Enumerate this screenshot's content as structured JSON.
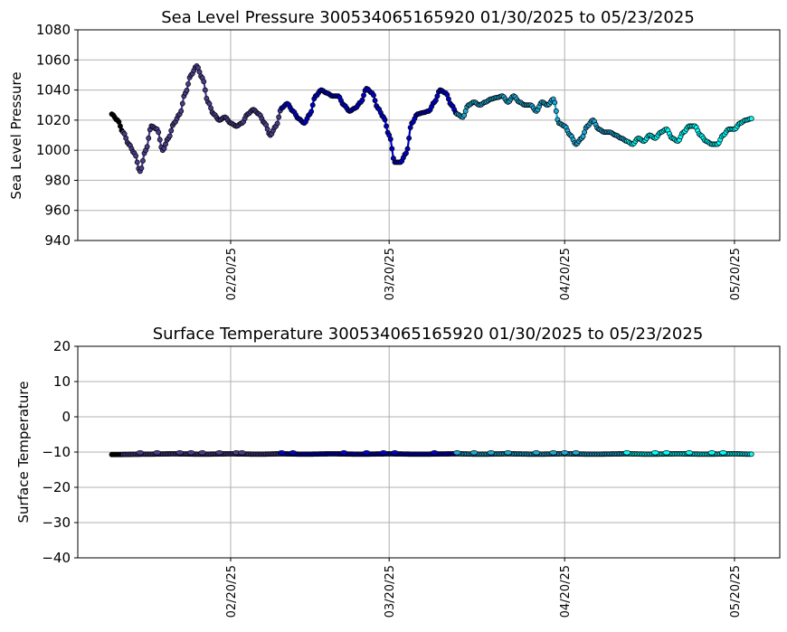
{
  "chart_data": [
    {
      "type": "line",
      "title": "Sea Level Pressure 300534065165920  01/30/2025 to 05/23/2025",
      "xlabel": "",
      "ylabel": "Sea Level Pressure",
      "x_range": [
        "2025-01-24",
        "2025-05-28"
      ],
      "ylim": [
        940,
        1080
      ],
      "yticks": [
        940,
        960,
        980,
        1000,
        1020,
        1040,
        1060,
        1080
      ],
      "xticks": [
        {
          "date": "2025-02-20",
          "label": "02/20/25"
        },
        {
          "date": "2025-03-20",
          "label": "03/20/25"
        },
        {
          "date": "2025-04-20",
          "label": "04/20/25"
        },
        {
          "date": "2025-05-20",
          "label": "05/20/25"
        }
      ],
      "grid": true,
      "color_segments": [
        {
          "from": "2025-01-30",
          "color": "#000000"
        },
        {
          "from": "2025-02-01",
          "color": "#483d8b"
        },
        {
          "from": "2025-03-01",
          "color": "#0000cd"
        },
        {
          "from": "2025-04-01",
          "color": "#1ca9d6"
        },
        {
          "from": "2025-05-01",
          "color": "#00ffff"
        }
      ],
      "series": [
        {
          "points": [
            [
              "2025-01-30",
              1024
            ],
            [
              "2025-01-31",
              1020
            ],
            [
              "2025-02-01",
              1012
            ],
            [
              "2025-02-02",
              1004
            ],
            [
              "2025-02-03",
              998
            ],
            [
              "2025-02-04",
              986
            ],
            [
              "2025-02-05",
              1000
            ],
            [
              "2025-02-06",
              1016
            ],
            [
              "2025-02-07",
              1014
            ],
            [
              "2025-02-08",
              1000
            ],
            [
              "2025-02-09",
              1008
            ],
            [
              "2025-02-10",
              1018
            ],
            [
              "2025-02-11",
              1024
            ],
            [
              "2025-02-12",
              1038
            ],
            [
              "2025-02-13",
              1050
            ],
            [
              "2025-02-14",
              1056
            ],
            [
              "2025-02-15",
              1048
            ],
            [
              "2025-02-16",
              1032
            ],
            [
              "2025-02-17",
              1024
            ],
            [
              "2025-02-18",
              1020
            ],
            [
              "2025-02-19",
              1022
            ],
            [
              "2025-02-20",
              1018
            ],
            [
              "2025-02-21",
              1016
            ],
            [
              "2025-02-22",
              1018
            ],
            [
              "2025-02-23",
              1024
            ],
            [
              "2025-02-24",
              1027
            ],
            [
              "2025-02-25",
              1024
            ],
            [
              "2025-02-26",
              1018
            ],
            [
              "2025-02-27",
              1010
            ],
            [
              "2025-02-28",
              1016
            ],
            [
              "2025-03-01",
              1028
            ],
            [
              "2025-03-02",
              1031
            ],
            [
              "2025-03-03",
              1026
            ],
            [
              "2025-03-04",
              1021
            ],
            [
              "2025-03-05",
              1018
            ],
            [
              "2025-03-06",
              1024
            ],
            [
              "2025-03-07",
              1036
            ],
            [
              "2025-03-08",
              1040
            ],
            [
              "2025-03-09",
              1038
            ],
            [
              "2025-03-10",
              1036
            ],
            [
              "2025-03-11",
              1036
            ],
            [
              "2025-03-12",
              1030
            ],
            [
              "2025-03-13",
              1026
            ],
            [
              "2025-03-14",
              1028
            ],
            [
              "2025-03-15",
              1032
            ],
            [
              "2025-03-16",
              1041
            ],
            [
              "2025-03-17",
              1038
            ],
            [
              "2025-03-18",
              1028
            ],
            [
              "2025-03-19",
              1022
            ],
            [
              "2025-03-20",
              1010
            ],
            [
              "2025-03-21",
              992
            ],
            [
              "2025-03-22",
              992
            ],
            [
              "2025-03-23",
              998
            ],
            [
              "2025-03-24",
              1018
            ],
            [
              "2025-03-25",
              1024
            ],
            [
              "2025-03-26",
              1025
            ],
            [
              "2025-03-27",
              1026
            ],
            [
              "2025-03-28",
              1032
            ],
            [
              "2025-03-29",
              1040
            ],
            [
              "2025-03-30",
              1038
            ],
            [
              "2025-03-31",
              1030
            ],
            [
              "2025-04-01",
              1024
            ],
            [
              "2025-04-02",
              1022
            ],
            [
              "2025-04-03",
              1030
            ],
            [
              "2025-04-04",
              1032
            ],
            [
              "2025-04-05",
              1030
            ],
            [
              "2025-04-06",
              1032
            ],
            [
              "2025-04-07",
              1034
            ],
            [
              "2025-04-08",
              1035
            ],
            [
              "2025-04-09",
              1036
            ],
            [
              "2025-04-10",
              1032
            ],
            [
              "2025-04-11",
              1036
            ],
            [
              "2025-04-12",
              1032
            ],
            [
              "2025-04-13",
              1030
            ],
            [
              "2025-04-14",
              1030
            ],
            [
              "2025-04-15",
              1026
            ],
            [
              "2025-04-16",
              1032
            ],
            [
              "2025-04-17",
              1030
            ],
            [
              "2025-04-18",
              1034
            ],
            [
              "2025-04-19",
              1018
            ],
            [
              "2025-04-20",
              1016
            ],
            [
              "2025-04-21",
              1010
            ],
            [
              "2025-04-22",
              1004
            ],
            [
              "2025-04-23",
              1008
            ],
            [
              "2025-04-24",
              1016
            ],
            [
              "2025-04-25",
              1020
            ],
            [
              "2025-04-26",
              1014
            ],
            [
              "2025-04-27",
              1012
            ],
            [
              "2025-04-28",
              1012
            ],
            [
              "2025-04-29",
              1010
            ],
            [
              "2025-04-30",
              1008
            ],
            [
              "2025-05-01",
              1006
            ],
            [
              "2025-05-02",
              1004
            ],
            [
              "2025-05-03",
              1008
            ],
            [
              "2025-05-04",
              1006
            ],
            [
              "2025-05-05",
              1010
            ],
            [
              "2025-05-06",
              1008
            ],
            [
              "2025-05-07",
              1012
            ],
            [
              "2025-05-08",
              1014
            ],
            [
              "2025-05-09",
              1008
            ],
            [
              "2025-05-10",
              1006
            ],
            [
              "2025-05-11",
              1012
            ],
            [
              "2025-05-12",
              1016
            ],
            [
              "2025-05-13",
              1016
            ],
            [
              "2025-05-14",
              1010
            ],
            [
              "2025-05-15",
              1006
            ],
            [
              "2025-05-16",
              1004
            ],
            [
              "2025-05-17",
              1004
            ],
            [
              "2025-05-18",
              1010
            ],
            [
              "2025-05-19",
              1014
            ],
            [
              "2025-05-20",
              1014
            ],
            [
              "2025-05-21",
              1018
            ],
            [
              "2025-05-22",
              1020
            ],
            [
              "2025-05-23",
              1021
            ]
          ]
        }
      ]
    },
    {
      "type": "line",
      "title": "Surface Temperature 300534065165920  01/30/2025 to 05/23/2025",
      "xlabel": "",
      "ylabel": "Surface Temperature",
      "x_range": [
        "2025-01-24",
        "2025-05-28"
      ],
      "ylim": [
        -40,
        20
      ],
      "yticks": [
        -40,
        -30,
        -20,
        -10,
        0,
        10,
        20
      ],
      "ytick_labels": [
        "−40",
        "−30",
        "−20",
        "−10",
        "0",
        "10",
        "20"
      ],
      "xticks": [
        {
          "date": "2025-02-20",
          "label": "02/20/25"
        },
        {
          "date": "2025-03-20",
          "label": "03/20/25"
        },
        {
          "date": "2025-04-20",
          "label": "04/20/25"
        },
        {
          "date": "2025-05-20",
          "label": "05/20/25"
        }
      ],
      "grid": true,
      "color_segments": [
        {
          "from": "2025-01-30",
          "color": "#000000"
        },
        {
          "from": "2025-02-01",
          "color": "#483d8b"
        },
        {
          "from": "2025-03-01",
          "color": "#0000cd"
        },
        {
          "from": "2025-04-01",
          "color": "#1ca9d6"
        },
        {
          "from": "2025-05-01",
          "color": "#00ffff"
        }
      ],
      "series": [
        {
          "points": [
            [
              "2025-01-30",
              -10.7
            ],
            [
              "2025-02-05",
              -10.6
            ],
            [
              "2025-02-10",
              -10.5
            ],
            [
              "2025-02-15",
              -10.6
            ],
            [
              "2025-02-20",
              -10.5
            ],
            [
              "2025-02-25",
              -10.6
            ],
            [
              "2025-03-01",
              -10.5
            ],
            [
              "2025-03-05",
              -10.6
            ],
            [
              "2025-03-10",
              -10.5
            ],
            [
              "2025-03-15",
              -10.6
            ],
            [
              "2025-03-20",
              -10.5
            ],
            [
              "2025-03-25",
              -10.6
            ],
            [
              "2025-04-01",
              -10.5
            ],
            [
              "2025-04-05",
              -10.6
            ],
            [
              "2025-04-10",
              -10.5
            ],
            [
              "2025-04-15",
              -10.6
            ],
            [
              "2025-04-20",
              -10.5
            ],
            [
              "2025-04-25",
              -10.6
            ],
            [
              "2025-05-01",
              -10.5
            ],
            [
              "2025-05-05",
              -10.6
            ],
            [
              "2025-05-10",
              -10.5
            ],
            [
              "2025-05-15",
              -10.6
            ],
            [
              "2025-05-20",
              -10.5
            ],
            [
              "2025-05-23",
              -10.6
            ]
          ],
          "bumps": [
            "2025-02-04",
            "2025-02-07",
            "2025-02-11",
            "2025-02-13",
            "2025-02-15",
            "2025-02-18",
            "2025-02-21",
            "2025-02-22",
            "2025-03-01",
            "2025-03-03",
            "2025-03-12",
            "2025-03-16",
            "2025-03-19",
            "2025-03-21",
            "2025-03-28",
            "2025-04-01",
            "2025-04-04",
            "2025-04-07",
            "2025-04-10",
            "2025-04-15",
            "2025-04-18",
            "2025-04-20",
            "2025-04-22",
            "2025-05-01",
            "2025-05-06",
            "2025-05-08",
            "2025-05-12",
            "2025-05-16",
            "2025-05-18"
          ]
        }
      ]
    }
  ]
}
